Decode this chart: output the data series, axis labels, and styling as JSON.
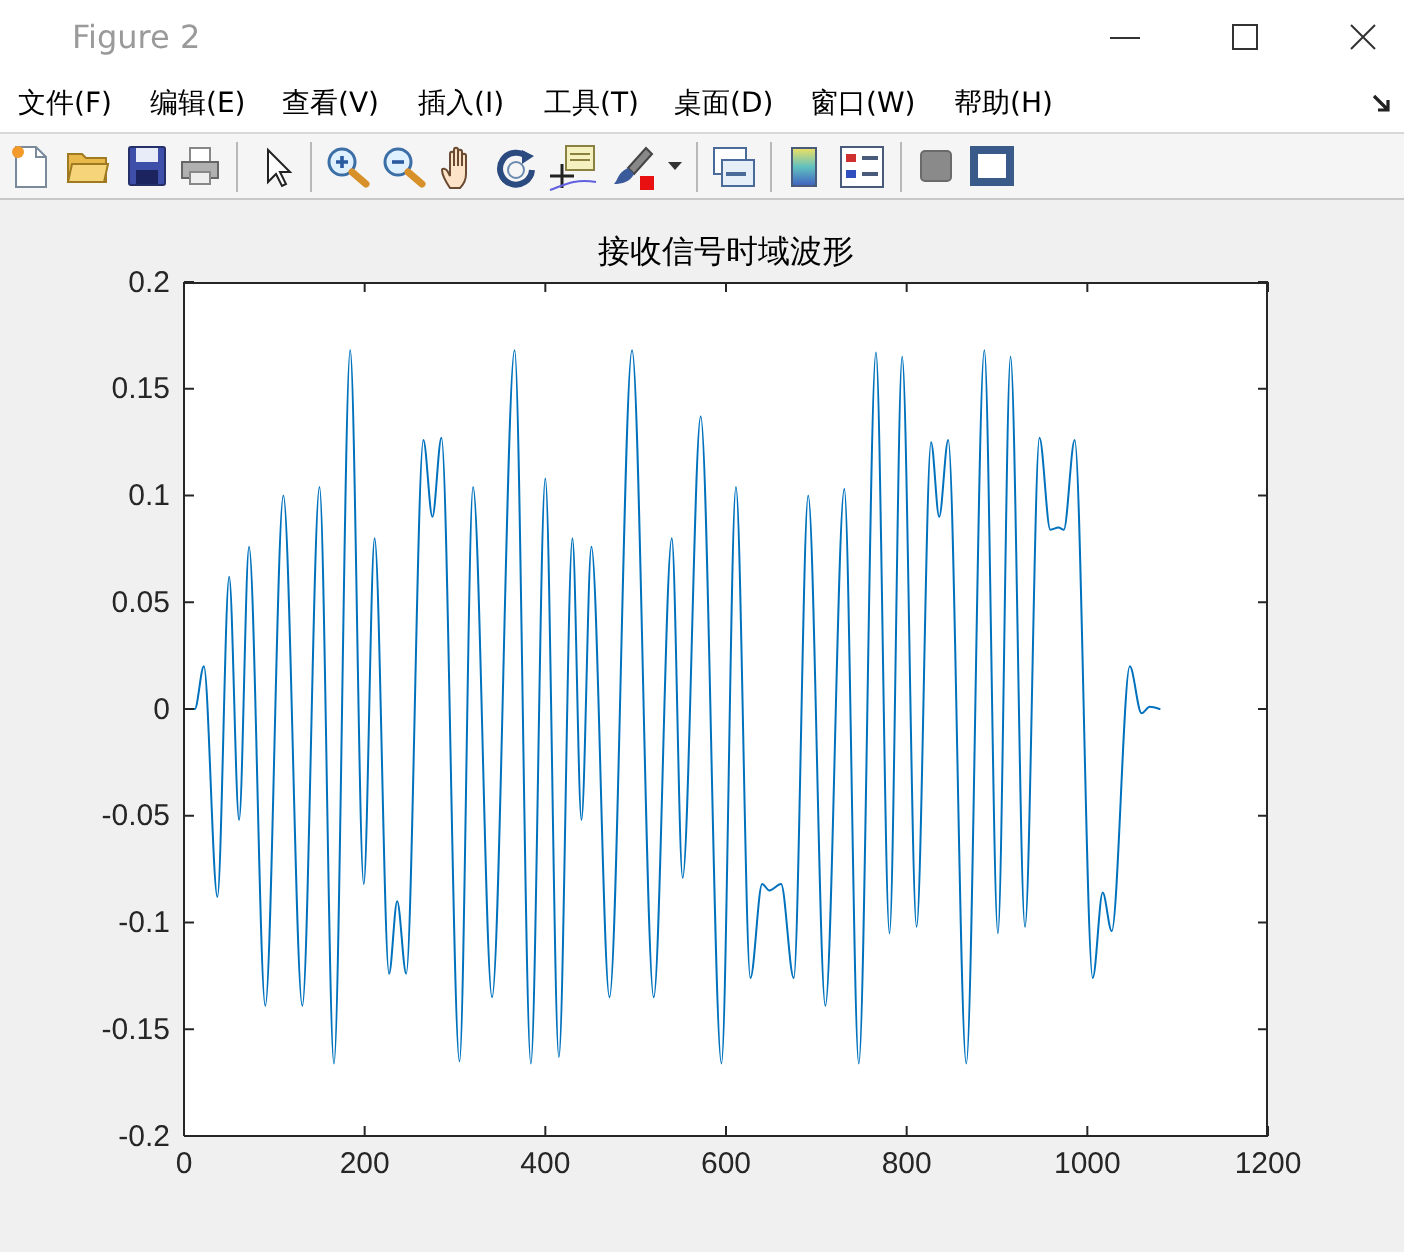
{
  "chart_data": {
    "type": "line",
    "title": "接收信号时域波形",
    "x": [
      0,
      12,
      22,
      37,
      50,
      61,
      72,
      90,
      110,
      131,
      150,
      166,
      184,
      199,
      211,
      227,
      236,
      246,
      265,
      275,
      285,
      305,
      320,
      341,
      366,
      384,
      400,
      415,
      430,
      440,
      451,
      471,
      496,
      520,
      540,
      552,
      572,
      595,
      611,
      627,
      640,
      648,
      661,
      675,
      691,
      710,
      731,
      747,
      766,
      781,
      795,
      811,
      827,
      836,
      846,
      866,
      886,
      901,
      915,
      931,
      947,
      959,
      968,
      974,
      986,
      1006,
      1017,
      1027,
      1047,
      1060,
      1069,
      1080
    ],
    "values": [
      0,
      0,
      0.02,
      -0.088,
      0.062,
      -0.052,
      0.076,
      -0.139,
      0.1,
      -0.139,
      0.104,
      -0.166,
      0.168,
      -0.082,
      0.08,
      -0.124,
      -0.09,
      -0.124,
      0.126,
      0.09,
      0.127,
      -0.165,
      0.104,
      -0.135,
      0.168,
      -0.166,
      0.108,
      -0.163,
      0.08,
      -0.052,
      0.076,
      -0.135,
      0.168,
      -0.135,
      0.08,
      -0.079,
      0.137,
      -0.166,
      0.104,
      -0.126,
      -0.082,
      -0.085,
      -0.082,
      -0.126,
      0.1,
      -0.139,
      0.103,
      -0.166,
      0.167,
      -0.105,
      0.165,
      -0.102,
      0.125,
      0.09,
      0.126,
      -0.166,
      0.168,
      -0.105,
      0.165,
      -0.102,
      0.127,
      0.084,
      0.085,
      0.084,
      0.126,
      -0.126,
      -0.086,
      -0.104,
      0.02,
      -0.002,
      0.001,
      0
    ],
    "color": "#0072bd",
    "line_style": "solid",
    "xlim": [
      0,
      1200
    ],
    "xticks": [
      0,
      200,
      400,
      600,
      800,
      1000,
      1200
    ],
    "ylim": [
      -0.2,
      0.2
    ],
    "yticks": [
      -0.2,
      -0.15,
      -0.1,
      -0.05,
      0,
      0.05,
      0.1,
      0.15,
      0.2
    ],
    "annotations": [
      "Figure 2",
      "文件(F)",
      "编辑(E)",
      "查看(V)",
      "插入(I)",
      "工具(T)",
      "桌面(D)",
      "窗口(W)",
      "帮助(H)"
    ]
  }
}
